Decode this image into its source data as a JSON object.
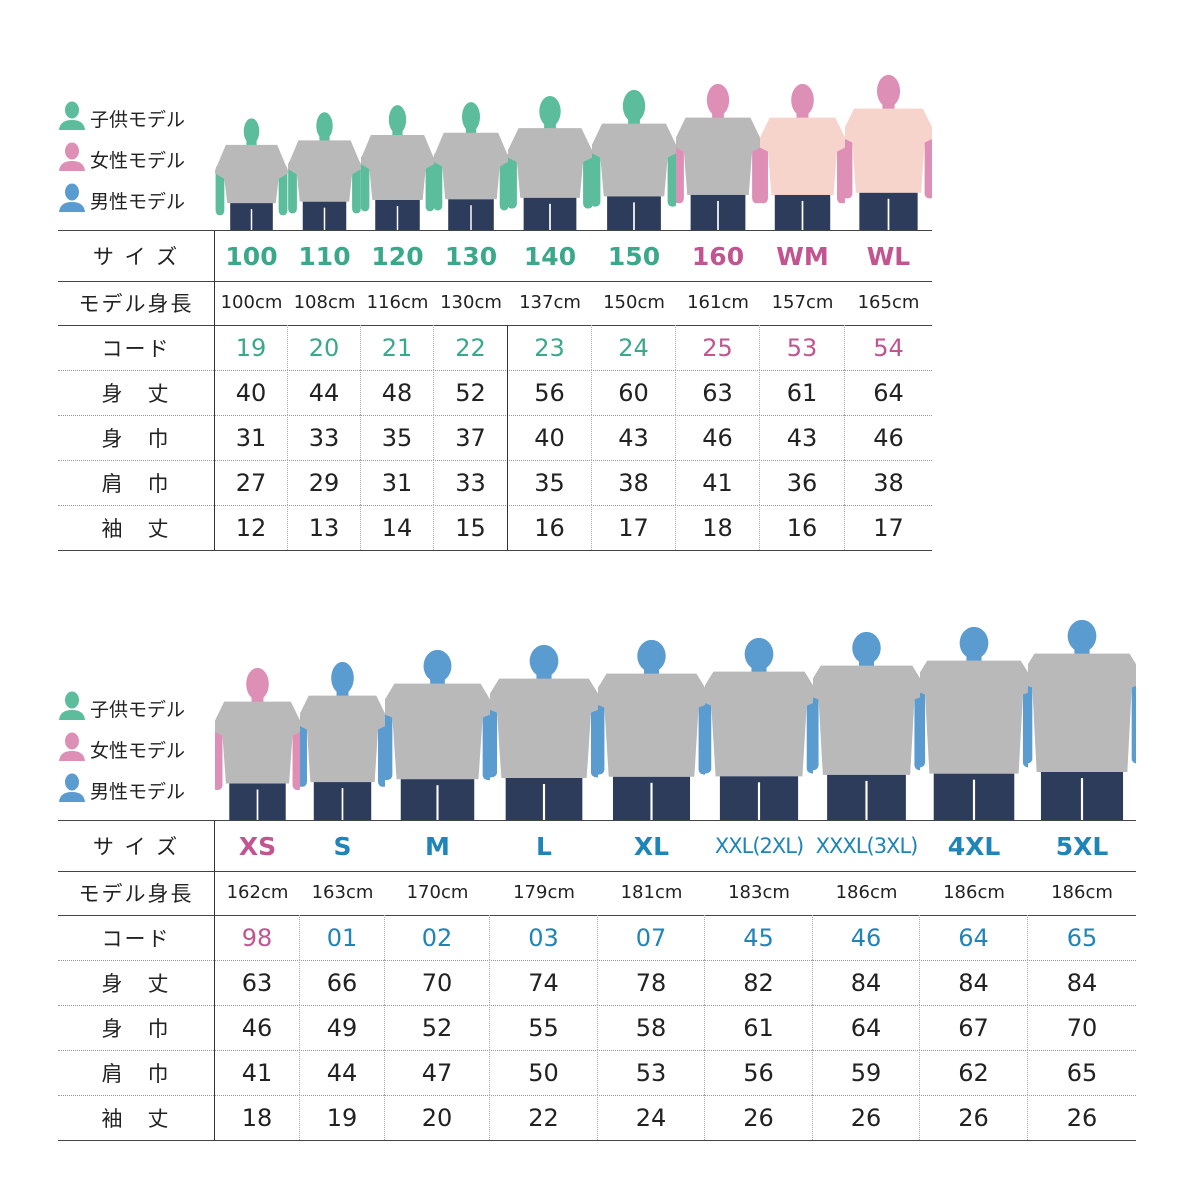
{
  "colors": {
    "kids": "#5bbd9c",
    "women": "#de8fb6",
    "men": "#5b9cd0",
    "kids_text": "#3aa88a",
    "women_text": "#c2548f",
    "men_text": "#1f84b8"
  },
  "legend": [
    {
      "label": "子供モデル",
      "type": "kids"
    },
    {
      "label": "女性モデル",
      "type": "women"
    },
    {
      "label": "男性モデル",
      "type": "men"
    }
  ],
  "row_labels": {
    "size": "サ イ ズ",
    "height": "モデル身長",
    "code": "コード",
    "body_length": "身　丈",
    "body_width": "身　巾",
    "shoulder": "肩　巾",
    "sleeve": "袖　丈"
  },
  "tables": [
    {
      "columns": [
        {
          "size": "100",
          "height": "100cm",
          "code": "19",
          "body_length": "40",
          "body_width": "31",
          "shoulder": "27",
          "sleeve": "12",
          "model": "kids"
        },
        {
          "size": "110",
          "height": "108cm",
          "code": "20",
          "body_length": "44",
          "body_width": "33",
          "shoulder": "29",
          "sleeve": "13",
          "model": "kids"
        },
        {
          "size": "120",
          "height": "116cm",
          "code": "21",
          "body_length": "48",
          "body_width": "35",
          "shoulder": "31",
          "sleeve": "14",
          "model": "kids"
        },
        {
          "size": "130",
          "height": "130cm",
          "code": "22",
          "body_length": "52",
          "body_width": "37",
          "shoulder": "33",
          "sleeve": "15",
          "model": "kids"
        },
        {
          "size": "140",
          "height": "137cm",
          "code": "23",
          "body_length": "56",
          "body_width": "40",
          "shoulder": "35",
          "sleeve": "16",
          "model": "kids"
        },
        {
          "size": "150",
          "height": "150cm",
          "code": "24",
          "body_length": "60",
          "body_width": "43",
          "shoulder": "38",
          "sleeve": "17",
          "model": "kids"
        },
        {
          "size": "160",
          "height": "161cm",
          "code": "25",
          "body_length": "63",
          "body_width": "46",
          "shoulder": "41",
          "sleeve": "18",
          "model": "women"
        },
        {
          "size": "WM",
          "height": "157cm",
          "code": "53",
          "body_length": "61",
          "body_width": "43",
          "shoulder": "36",
          "sleeve": "16",
          "model": "women"
        },
        {
          "size": "WL",
          "height": "165cm",
          "code": "54",
          "body_length": "64",
          "body_width": "46",
          "shoulder": "38",
          "sleeve": "17",
          "model": "women"
        }
      ]
    },
    {
      "columns": [
        {
          "size": "XS",
          "height": "162cm",
          "code": "98",
          "body_length": "63",
          "body_width": "46",
          "shoulder": "41",
          "sleeve": "18",
          "model": "women"
        },
        {
          "size": "S",
          "height": "163cm",
          "code": "01",
          "body_length": "66",
          "body_width": "49",
          "shoulder": "44",
          "sleeve": "19",
          "model": "men"
        },
        {
          "size": "M",
          "height": "170cm",
          "code": "02",
          "body_length": "70",
          "body_width": "52",
          "shoulder": "47",
          "sleeve": "20",
          "model": "men"
        },
        {
          "size": "L",
          "height": "179cm",
          "code": "03",
          "body_length": "74",
          "body_width": "55",
          "shoulder": "50",
          "sleeve": "22",
          "model": "men"
        },
        {
          "size": "XL",
          "height": "181cm",
          "code": "07",
          "body_length": "78",
          "body_width": "58",
          "shoulder": "53",
          "sleeve": "24",
          "model": "men"
        },
        {
          "size": "XXL(2XL)",
          "height": "183cm",
          "code": "45",
          "body_length": "82",
          "body_width": "61",
          "shoulder": "56",
          "sleeve": "26",
          "model": "men"
        },
        {
          "size": "XXXL(3XL)",
          "height": "186cm",
          "code": "46",
          "body_length": "84",
          "body_width": "64",
          "shoulder": "59",
          "sleeve": "26",
          "model": "men"
        },
        {
          "size": "4XL",
          "height": "186cm",
          "code": "64",
          "body_length": "84",
          "body_width": "67",
          "shoulder": "62",
          "sleeve": "26",
          "model": "men"
        },
        {
          "size": "5XL",
          "height": "186cm",
          "code": "65",
          "body_length": "84",
          "body_width": "70",
          "shoulder": "65",
          "sleeve": "26",
          "model": "men"
        }
      ]
    }
  ]
}
